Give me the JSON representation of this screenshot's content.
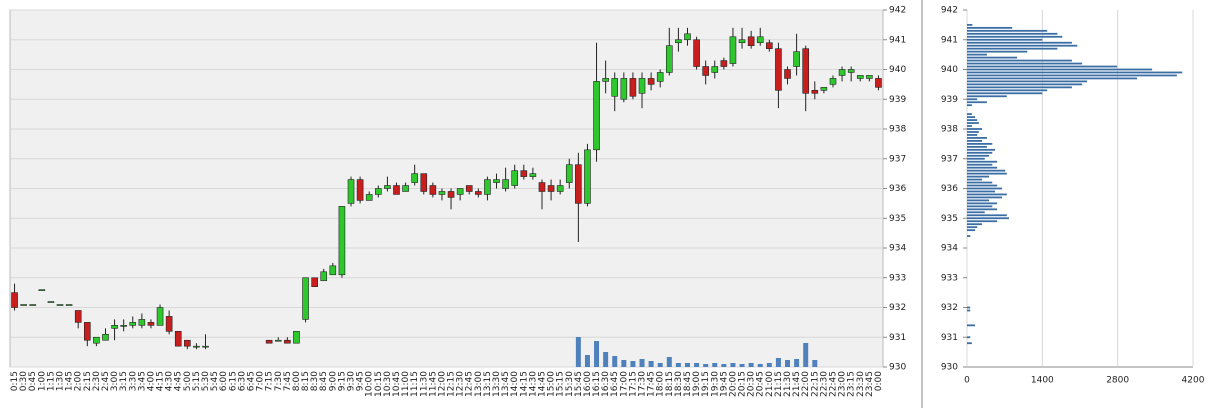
{
  "chart_data": [
    {
      "type": "candlestick",
      "categories": [
        "0:15",
        "0:30",
        "0:45",
        "1:00",
        "1:15",
        "1:30",
        "1:45",
        "2:00",
        "2:15",
        "2:30",
        "2:45",
        "3:00",
        "3:15",
        "3:30",
        "3:45",
        "4:00",
        "4:15",
        "4:30",
        "4:45",
        "5:00",
        "5:15",
        "5:30",
        "5:45",
        "6:00",
        "6:15",
        "6:30",
        "6:45",
        "7:00",
        "7:15",
        "7:30",
        "7:45",
        "8:00",
        "8:15",
        "8:30",
        "8:45",
        "9:00",
        "9:15",
        "9:30",
        "9:45",
        "10:00",
        "10:15",
        "10:30",
        "10:45",
        "11:00",
        "11:15",
        "11:30",
        "11:45",
        "12:00",
        "12:15",
        "12:30",
        "12:45",
        "13:00",
        "13:15",
        "13:30",
        "13:45",
        "14:00",
        "14:15",
        "14:30",
        "14:45",
        "15:00",
        "15:15",
        "15:30",
        "15:45",
        "16:00",
        "16:15",
        "16:30",
        "16:45",
        "17:00",
        "17:15",
        "17:30",
        "17:45",
        "18:00",
        "18:15",
        "18:30",
        "18:45",
        "19:00",
        "19:15",
        "19:30",
        "19:45",
        "20:00",
        "20:15",
        "20:30",
        "20:45",
        "21:00",
        "21:15",
        "21:30",
        "21:45",
        "22:00",
        "22:15",
        "22:30",
        "22:45",
        "23:00",
        "23:15",
        "23:30",
        "23:45",
        "0:00"
      ],
      "open": [
        932.5,
        932.1,
        932.1,
        932.6,
        932.2,
        932.1,
        932.1,
        931.9,
        931.5,
        930.8,
        930.9,
        931.3,
        931.4,
        931.4,
        931.4,
        931.5,
        931.4,
        931.7,
        931.2,
        930.9,
        930.7,
        930.7,
        null,
        null,
        null,
        null,
        null,
        null,
        930.9,
        930.9,
        930.9,
        930.8,
        931.6,
        933.0,
        932.9,
        933.1,
        933.1,
        935.5,
        936.3,
        935.6,
        935.8,
        936.0,
        936.1,
        935.9,
        936.2,
        936.5,
        936.1,
        935.8,
        935.9,
        935.8,
        936.1,
        935.9,
        935.8,
        936.2,
        936.0,
        936.1,
        936.6,
        936.4,
        936.2,
        936.1,
        935.9,
        936.2,
        936.8,
        935.5,
        937.3,
        939.6,
        939.1,
        939.0,
        939.7,
        939.2,
        939.7,
        939.6,
        939.9,
        940.9,
        941.0,
        941.0,
        940.1,
        939.9,
        940.3,
        940.2,
        940.9,
        941.1,
        940.9,
        940.9,
        940.7,
        940.0,
        940.1,
        940.7,
        939.3,
        939.3,
        939.5,
        939.8,
        939.9,
        939.7,
        939.7,
        939.7
      ],
      "high": [
        932.8,
        932.1,
        932.1,
        932.6,
        932.2,
        932.1,
        932.1,
        931.9,
        931.5,
        931.0,
        931.3,
        931.6,
        931.6,
        931.7,
        931.8,
        931.6,
        932.1,
        931.9,
        931.2,
        930.9,
        930.8,
        931.1,
        null,
        null,
        null,
        null,
        null,
        null,
        930.9,
        931.0,
        931.0,
        931.2,
        933.0,
        933.0,
        933.3,
        933.5,
        935.4,
        936.4,
        936.4,
        935.9,
        936.1,
        936.4,
        936.2,
        936.2,
        936.8,
        936.5,
        936.2,
        936.0,
        936.0,
        936.0,
        936.1,
        936.0,
        936.4,
        936.5,
        936.7,
        936.8,
        936.8,
        936.7,
        936.3,
        936.3,
        936.3,
        937.0,
        937.2,
        937.5,
        940.9,
        940.3,
        939.9,
        939.9,
        939.9,
        939.9,
        939.9,
        940.0,
        941.4,
        941.4,
        941.4,
        941.1,
        940.3,
        940.3,
        940.4,
        941.4,
        941.4,
        941.3,
        941.4,
        941.0,
        940.9,
        940.1,
        941.2,
        940.8,
        939.6,
        939.4,
        939.8,
        940.1,
        940.1,
        939.8,
        939.8,
        939.8
      ],
      "low": [
        931.9,
        932.1,
        932.1,
        932.6,
        932.2,
        932.1,
        932.1,
        931.3,
        930.7,
        930.7,
        930.9,
        930.9,
        931.2,
        931.3,
        931.3,
        931.3,
        931.4,
        931.1,
        930.7,
        930.6,
        930.6,
        930.6,
        null,
        null,
        null,
        null,
        null,
        null,
        930.8,
        930.9,
        930.8,
        930.8,
        931.5,
        932.7,
        932.9,
        933.1,
        933.0,
        935.4,
        935.5,
        935.6,
        935.7,
        935.9,
        935.8,
        935.9,
        936.1,
        935.8,
        935.7,
        935.6,
        935.3,
        935.6,
        935.8,
        935.7,
        935.6,
        936.0,
        935.9,
        936.0,
        936.3,
        936.3,
        935.3,
        935.6,
        935.8,
        936.0,
        934.2,
        935.4,
        936.9,
        939.2,
        938.6,
        938.9,
        939.0,
        938.7,
        939.3,
        939.4,
        939.8,
        940.6,
        940.8,
        940.0,
        939.5,
        939.7,
        940.0,
        940.1,
        940.7,
        940.7,
        940.8,
        940.6,
        938.7,
        939.5,
        939.8,
        938.6,
        939.0,
        939.2,
        939.4,
        939.6,
        939.6,
        939.6,
        939.6,
        939.3
      ],
      "close": [
        932.0,
        932.1,
        932.1,
        932.6,
        932.2,
        932.1,
        932.1,
        931.5,
        930.9,
        931.0,
        931.1,
        931.4,
        931.4,
        931.5,
        931.6,
        931.4,
        932.0,
        931.2,
        930.7,
        930.7,
        930.7,
        930.7,
        null,
        null,
        null,
        null,
        null,
        null,
        930.8,
        930.9,
        930.8,
        931.2,
        933.0,
        932.7,
        933.2,
        933.4,
        935.4,
        936.3,
        935.6,
        935.8,
        936.0,
        936.1,
        935.8,
        936.1,
        936.5,
        935.9,
        935.8,
        935.9,
        935.7,
        936.0,
        935.9,
        935.8,
        936.3,
        936.3,
        936.3,
        936.6,
        936.4,
        936.5,
        935.9,
        935.9,
        936.1,
        936.8,
        935.5,
        937.3,
        939.6,
        939.7,
        939.7,
        939.7,
        939.1,
        939.7,
        939.5,
        939.9,
        940.8,
        941.0,
        941.2,
        940.1,
        939.8,
        940.1,
        940.1,
        941.1,
        941.0,
        940.8,
        941.1,
        940.7,
        939.3,
        939.7,
        940.6,
        939.2,
        939.2,
        939.4,
        939.7,
        940.0,
        940.0,
        939.8,
        939.8,
        939.4
      ],
      "volume": [
        null,
        null,
        null,
        null,
        null,
        null,
        null,
        null,
        null,
        null,
        null,
        null,
        null,
        null,
        null,
        null,
        null,
        null,
        null,
        null,
        null,
        null,
        null,
        null,
        null,
        null,
        null,
        null,
        null,
        null,
        null,
        null,
        null,
        null,
        null,
        null,
        null,
        null,
        null,
        null,
        null,
        null,
        null,
        null,
        null,
        null,
        null,
        null,
        null,
        null,
        null,
        null,
        null,
        null,
        null,
        null,
        null,
        null,
        null,
        null,
        null,
        null,
        300,
        120,
        260,
        150,
        110,
        70,
        60,
        80,
        60,
        40,
        100,
        40,
        40,
        40,
        30,
        40,
        30,
        40,
        30,
        40,
        30,
        40,
        90,
        70,
        80,
        240,
        70,
        null,
        null,
        null,
        null,
        null,
        null,
        null
      ],
      "up_color": "#2ec82e",
      "down_color": "#c81e1e",
      "volume_color": "#4f81bd",
      "ylim": [
        930,
        942
      ],
      "yticks": [
        930,
        931,
        932,
        933,
        934,
        935,
        936,
        937,
        938,
        939,
        940,
        941,
        942
      ],
      "grid": true
    },
    {
      "type": "barh",
      "y": [
        941.5,
        941.4,
        941.3,
        941.2,
        941.1,
        941.0,
        940.9,
        940.8,
        940.7,
        940.6,
        940.5,
        940.4,
        940.3,
        940.2,
        940.1,
        940.0,
        939.9,
        939.8,
        939.7,
        939.6,
        939.5,
        939.4,
        939.3,
        939.2,
        939.1,
        939.0,
        938.9,
        938.8,
        938.5,
        938.4,
        938.3,
        938.2,
        938.1,
        938.0,
        937.9,
        937.8,
        937.7,
        937.6,
        937.5,
        937.4,
        937.3,
        937.2,
        937.1,
        937.0,
        936.9,
        936.8,
        936.7,
        936.6,
        936.5,
        936.4,
        936.3,
        936.2,
        936.1,
        936.0,
        935.9,
        935.8,
        935.7,
        935.6,
        935.5,
        935.4,
        935.3,
        935.2,
        935.1,
        935.0,
        934.9,
        934.8,
        934.7,
        934.6,
        934.4,
        932.0,
        931.9,
        931.4,
        931.0,
        930.8
      ],
      "values": [
        100,
        840,
        1490,
        1680,
        1770,
        1400,
        1950,
        2050,
        1680,
        1120,
        370,
        930,
        1950,
        2140,
        2790,
        3440,
        4000,
        3900,
        3160,
        2230,
        2140,
        1950,
        1490,
        1400,
        740,
        190,
        370,
        90,
        90,
        150,
        190,
        220,
        90,
        280,
        220,
        190,
        370,
        280,
        470,
        370,
        520,
        470,
        410,
        330,
        560,
        470,
        560,
        710,
        740,
        410,
        280,
        470,
        560,
        650,
        520,
        740,
        650,
        410,
        560,
        470,
        560,
        330,
        740,
        780,
        560,
        280,
        190,
        150,
        60,
        60,
        60,
        150,
        60,
        90
      ],
      "color": "#3a6ea5",
      "xlim": [
        0,
        4200
      ],
      "xticks": [
        0,
        1400,
        2800,
        4200
      ],
      "ylim": [
        930,
        942
      ],
      "yticks": [
        930,
        931,
        932,
        933,
        934,
        935,
        936,
        937,
        938,
        939,
        940,
        941,
        942
      ],
      "grid": true
    }
  ]
}
